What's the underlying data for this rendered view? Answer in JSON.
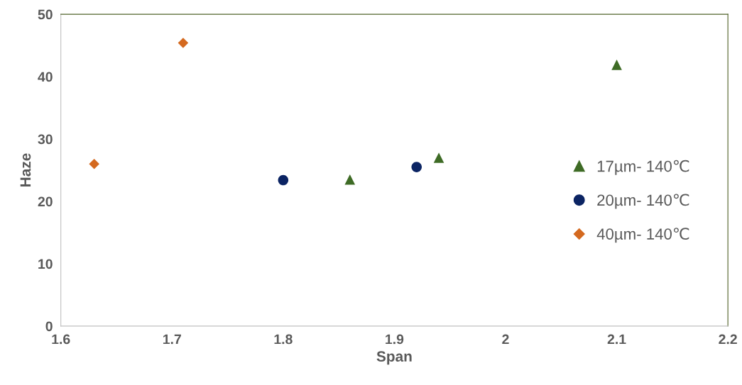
{
  "chart_data": {
    "type": "scatter",
    "xlabel": "Span",
    "ylabel": "Haze",
    "xlim": [
      1.6,
      2.2
    ],
    "xticks": [
      1.6,
      1.7,
      1.8,
      1.9,
      2,
      2.1,
      2.2
    ],
    "ylim": [
      0,
      50
    ],
    "yticks": [
      0,
      10,
      20,
      30,
      40,
      50
    ],
    "grid": false,
    "legend": "right",
    "series": [
      {
        "name": "17µm- 140℃",
        "color": "#3e6b25",
        "marker": "triangle",
        "x": [
          1.86,
          1.94,
          2.1
        ],
        "values": [
          23.5,
          27.0,
          41.9
        ]
      },
      {
        "name": "20µm- 140℃",
        "color": "#0b2463",
        "marker": "circle",
        "x": [
          1.8,
          1.92
        ],
        "values": [
          23.4,
          25.5
        ]
      },
      {
        "name": "40µm- 140℃",
        "color": "#d4691f",
        "marker": "diamond",
        "x": [
          1.63,
          1.71
        ],
        "values": [
          26.0,
          45.4
        ]
      }
    ]
  }
}
